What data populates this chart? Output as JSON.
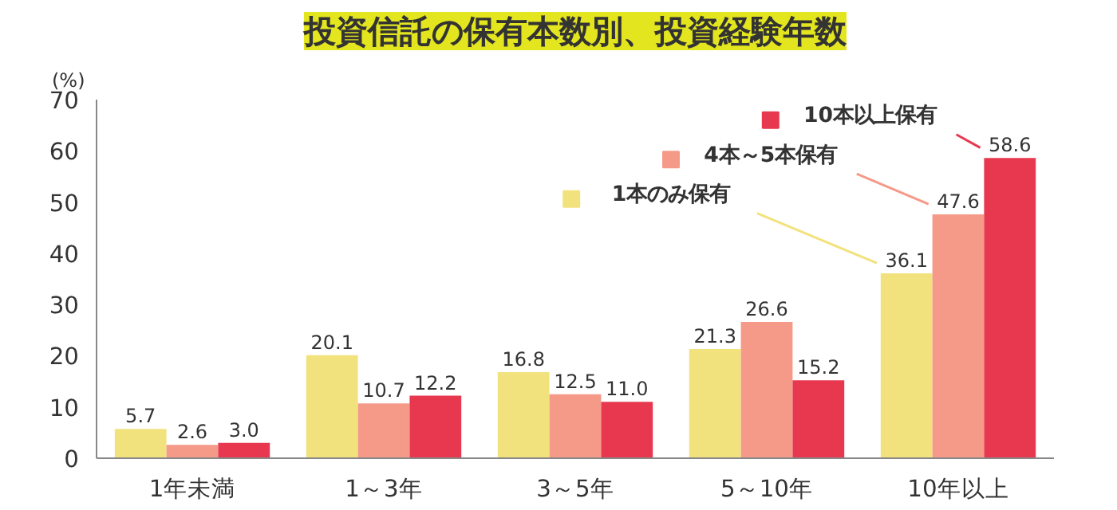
{
  "chart_data": {
    "type": "bar",
    "title": "投資信託の保有本数別、投資経験年数",
    "ylabel": "(%)",
    "categories": [
      "1年未満",
      "1～3年",
      "3～5年",
      "5～10年",
      "10年以上"
    ],
    "series": [
      {
        "name": "1本のみ保有",
        "color": "#f2e27e",
        "values": [
          5.7,
          20.1,
          16.8,
          21.3,
          36.1
        ],
        "value_labels": [
          "5.7",
          "20.1",
          "16.8",
          "21.3",
          "36.1"
        ]
      },
      {
        "name": "4本～5本保有",
        "color": "#f59a88",
        "values": [
          2.6,
          10.7,
          12.5,
          26.6,
          47.6
        ],
        "value_labels": [
          "2.6",
          "10.7",
          "12.5",
          "26.6",
          "47.6"
        ]
      },
      {
        "name": "10本以上保有",
        "color": "#e8384f",
        "values": [
          3.0,
          12.2,
          11.0,
          15.2,
          58.6
        ],
        "value_labels": [
          "3.0",
          "12.2",
          "11.0",
          "15.2",
          "58.6"
        ]
      }
    ],
    "ylim": [
      0,
      70
    ],
    "yticks": [
      0,
      10,
      20,
      30,
      40,
      50,
      60,
      70
    ],
    "grid": false,
    "legend": "top right"
  }
}
